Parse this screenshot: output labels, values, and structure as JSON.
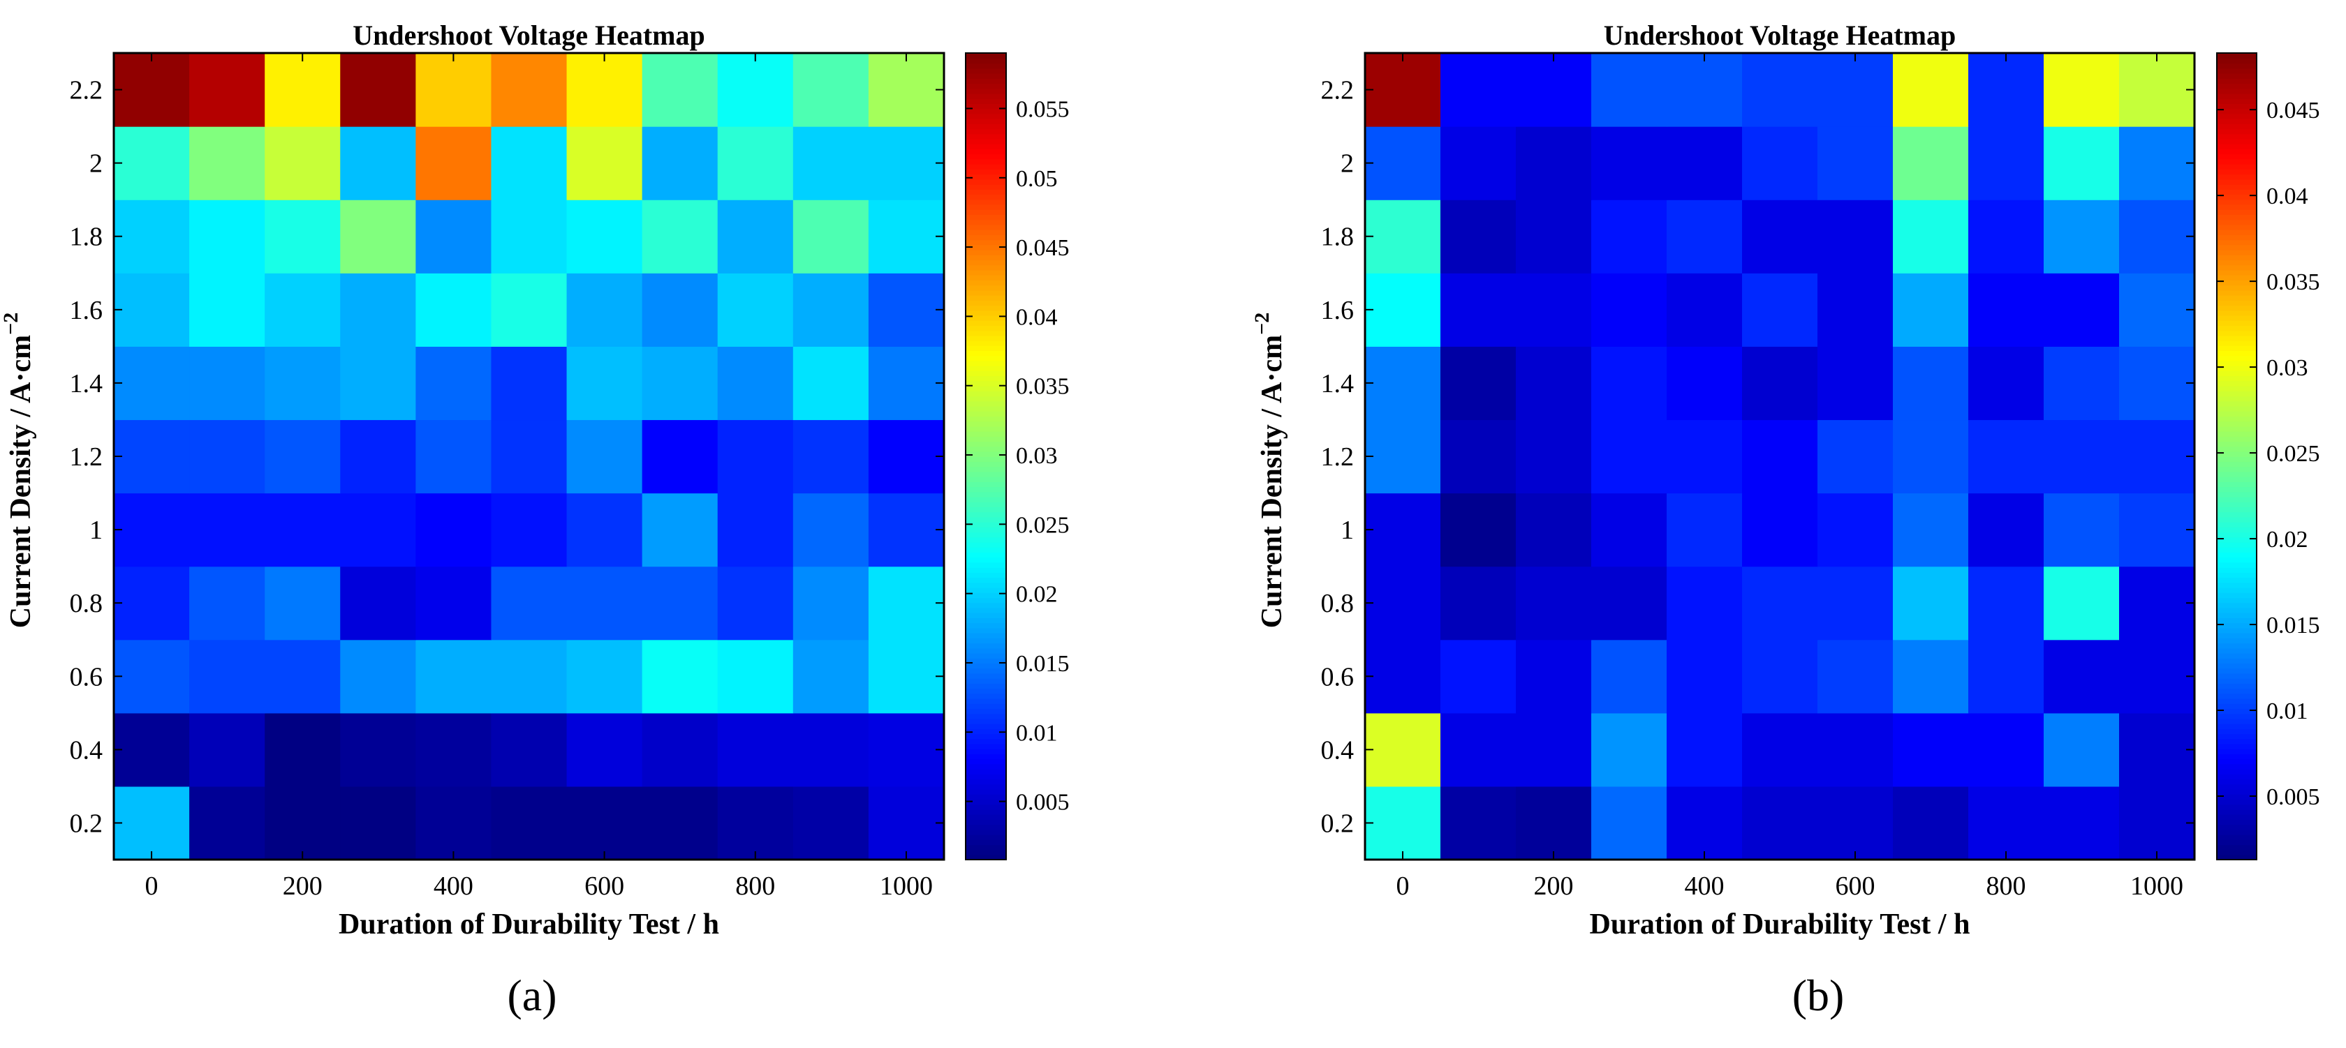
{
  "figure": {
    "panel_labels": [
      "(a)",
      "(b)"
    ]
  },
  "chart_data": [
    {
      "type": "heatmap",
      "title": "Undershoot Voltage Heatmap",
      "xlabel": "Duration of Durability Test / h",
      "ylabel": "Current Density / A·cm",
      "ylabel_superscript": "−2",
      "x": [
        0,
        100,
        200,
        300,
        400,
        500,
        600,
        700,
        800,
        900,
        1000
      ],
      "y": [
        0.2,
        0.4,
        0.6,
        0.8,
        1.0,
        1.2,
        1.4,
        1.6,
        1.8,
        2.0,
        2.2
      ],
      "x_ticks": [
        "0",
        "200",
        "400",
        "600",
        "800",
        "1000"
      ],
      "y_ticks": [
        "0.2",
        "0.4",
        "0.6",
        "0.8",
        "1",
        "1.2",
        "1.4",
        "1.6",
        "1.8",
        "2",
        "2.2"
      ],
      "colorbar": {
        "min": 0.0008,
        "max": 0.059,
        "ticks": [
          0.005,
          0.01,
          0.015,
          0.02,
          0.025,
          0.03,
          0.035,
          0.04,
          0.045,
          0.05,
          0.055
        ],
        "tick_labels": [
          "0.005",
          "0.01",
          "0.015",
          "0.02",
          "0.025",
          "0.03",
          "0.035",
          "0.04",
          "0.045",
          "0.05",
          "0.055"
        ],
        "colormap": "jet"
      },
      "values": [
        [
          0.019,
          0.002,
          0.001,
          0.001,
          0.002,
          0.0015,
          0.0015,
          0.0015,
          0.0025,
          0.003,
          0.006
        ],
        [
          0.002,
          0.004,
          0.001,
          0.002,
          0.0025,
          0.0035,
          0.006,
          0.005,
          0.006,
          0.006,
          0.0065
        ],
        [
          0.013,
          0.012,
          0.012,
          0.016,
          0.018,
          0.018,
          0.019,
          0.023,
          0.022,
          0.017,
          0.021
        ],
        [
          0.01,
          0.013,
          0.015,
          0.006,
          0.007,
          0.013,
          0.013,
          0.013,
          0.011,
          0.016,
          0.021
        ],
        [
          0.009,
          0.009,
          0.009,
          0.009,
          0.008,
          0.009,
          0.011,
          0.017,
          0.01,
          0.014,
          0.011
        ],
        [
          0.012,
          0.012,
          0.013,
          0.01,
          0.013,
          0.011,
          0.016,
          0.008,
          0.01,
          0.011,
          0.008
        ],
        [
          0.016,
          0.016,
          0.017,
          0.018,
          0.014,
          0.011,
          0.019,
          0.018,
          0.016,
          0.021,
          0.015
        ],
        [
          0.019,
          0.022,
          0.02,
          0.018,
          0.022,
          0.024,
          0.018,
          0.016,
          0.02,
          0.018,
          0.013
        ],
        [
          0.02,
          0.022,
          0.024,
          0.03,
          0.016,
          0.021,
          0.022,
          0.025,
          0.018,
          0.027,
          0.021
        ],
        [
          0.025,
          0.03,
          0.034,
          0.019,
          0.045,
          0.021,
          0.035,
          0.018,
          0.025,
          0.02,
          0.02
        ],
        [
          0.058,
          0.056,
          0.038,
          0.058,
          0.04,
          0.044,
          0.038,
          0.027,
          0.023,
          0.027,
          0.032
        ]
      ]
    },
    {
      "type": "heatmap",
      "title": "Undershoot Voltage Heatmap",
      "xlabel": "Duration of Durability Test / h",
      "ylabel": "Current Density / A·cm",
      "ylabel_superscript": "−2",
      "x": [
        0,
        100,
        200,
        300,
        400,
        500,
        600,
        700,
        800,
        900,
        1000
      ],
      "y": [
        0.2,
        0.4,
        0.6,
        0.8,
        1.0,
        1.2,
        1.4,
        1.6,
        1.8,
        2.0,
        2.2
      ],
      "x_ticks": [
        "0",
        "200",
        "400",
        "600",
        "800",
        "1000"
      ],
      "y_ticks": [
        "0.2",
        "0.4",
        "0.6",
        "0.8",
        "1",
        "1.2",
        "1.4",
        "1.6",
        "1.8",
        "2",
        "2.2"
      ],
      "colorbar": {
        "min": 0.0013,
        "max": 0.0483,
        "ticks": [
          0.005,
          0.01,
          0.015,
          0.02,
          0.025,
          0.03,
          0.035,
          0.04,
          0.045
        ],
        "tick_labels": [
          "0.005",
          "0.01",
          "0.015",
          "0.02",
          "0.025",
          "0.03",
          "0.035",
          "0.04",
          "0.045"
        ],
        "colormap": "jet"
      },
      "values": [
        [
          0.02,
          0.003,
          0.0025,
          0.012,
          0.006,
          0.005,
          0.005,
          0.004,
          0.006,
          0.006,
          0.005
        ],
        [
          0.029,
          0.006,
          0.006,
          0.014,
          0.008,
          0.006,
          0.006,
          0.007,
          0.007,
          0.013,
          0.005
        ],
        [
          0.006,
          0.008,
          0.006,
          0.011,
          0.008,
          0.009,
          0.01,
          0.013,
          0.009,
          0.006,
          0.006
        ],
        [
          0.006,
          0.004,
          0.005,
          0.005,
          0.008,
          0.009,
          0.009,
          0.016,
          0.009,
          0.02,
          0.006
        ],
        [
          0.006,
          0.002,
          0.004,
          0.006,
          0.009,
          0.007,
          0.008,
          0.012,
          0.006,
          0.011,
          0.01
        ],
        [
          0.013,
          0.004,
          0.005,
          0.008,
          0.008,
          0.007,
          0.01,
          0.011,
          0.009,
          0.009,
          0.009
        ],
        [
          0.013,
          0.003,
          0.005,
          0.008,
          0.007,
          0.005,
          0.006,
          0.011,
          0.006,
          0.01,
          0.011
        ],
        [
          0.019,
          0.006,
          0.006,
          0.007,
          0.006,
          0.009,
          0.006,
          0.015,
          0.007,
          0.007,
          0.012
        ],
        [
          0.021,
          0.004,
          0.005,
          0.008,
          0.009,
          0.006,
          0.006,
          0.02,
          0.008,
          0.014,
          0.011
        ],
        [
          0.011,
          0.006,
          0.005,
          0.006,
          0.006,
          0.009,
          0.01,
          0.024,
          0.009,
          0.02,
          0.013
        ],
        [
          0.047,
          0.007,
          0.007,
          0.011,
          0.011,
          0.01,
          0.01,
          0.03,
          0.009,
          0.03,
          0.028
        ]
      ]
    }
  ]
}
